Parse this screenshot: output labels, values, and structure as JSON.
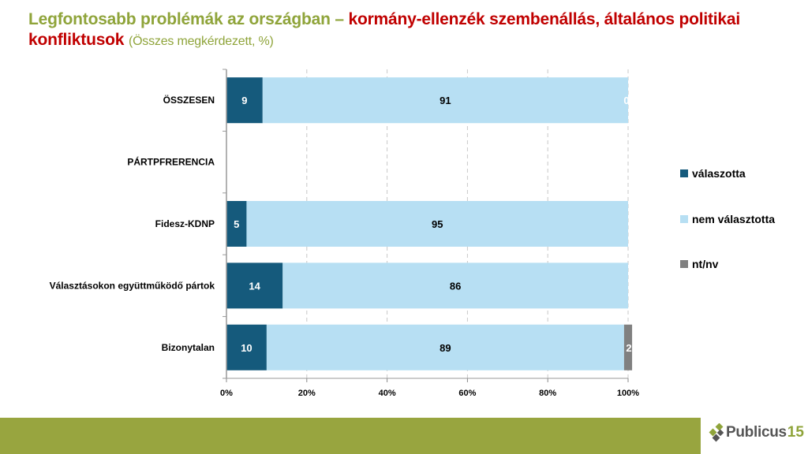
{
  "title": {
    "part1": "Legfontosabb problémák az országban – ",
    "part2": "kormány-ellenzék szembenállás, általános politikai konfliktusok",
    "subtitle": "(Összes megkérdezett, %)"
  },
  "colors": {
    "title_green": "#8fa43a",
    "title_red": "#c00000",
    "valaszotta": "#155a7c",
    "nem_valasztotta": "#b7dff3",
    "ntnv": "#808080",
    "footer": "#98a53f"
  },
  "logo": {
    "icon": "diamond-cluster-icon",
    "text": "Publicus",
    "number": "15"
  },
  "chart_data": {
    "type": "bar",
    "orientation": "horizontal",
    "stacked": "percent",
    "title": "Legfontosabb problémák az országban – kormány-ellenzék szembenállás, általános politikai konfliktusok",
    "categories": [
      "ÖSSZESEN",
      "PÁRTPFRERENCIA",
      "Fidesz-KDNP",
      "Választásokon együttműködő pártok",
      "Bizonytalan"
    ],
    "series": [
      {
        "name": "válaszotta",
        "values": [
          9,
          null,
          5,
          14,
          10
        ],
        "labels": [
          "9",
          "",
          "5",
          "14",
          "10"
        ]
      },
      {
        "name": "nem választotta",
        "values": [
          91,
          null,
          95,
          86,
          89
        ],
        "labels": [
          "91",
          "",
          "95",
          "86",
          "89"
        ]
      },
      {
        "name": "nt/nv",
        "values": [
          0,
          null,
          0,
          0,
          2
        ],
        "labels": [
          "0",
          "",
          "",
          "",
          "2"
        ]
      }
    ],
    "x_ticks": [
      "0%",
      "20%",
      "40%",
      "60%",
      "80%",
      "100%"
    ],
    "xlim": [
      0,
      100
    ],
    "grid": "vertical dashed",
    "legend_position": "right"
  }
}
